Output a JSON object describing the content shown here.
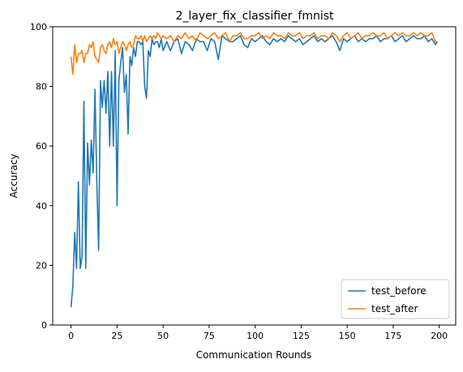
{
  "chart_data": {
    "type": "line",
    "title": "2_layer_fix_classifier_fmnist",
    "xlabel": "Communication Rounds",
    "ylabel": "Accuracy",
    "xlim": [
      -9.95,
      208.95
    ],
    "ylim": [
      0,
      100
    ],
    "xticks": [
      0,
      25,
      50,
      75,
      100,
      125,
      150,
      175,
      200
    ],
    "yticks": [
      0,
      20,
      40,
      60,
      80,
      100
    ],
    "grid": false,
    "legend_position": "lower right",
    "series": [
      {
        "name": "test_before",
        "color": "#1f77b4",
        "x": [
          0,
          1,
          2,
          3,
          4,
          5,
          6,
          7,
          8,
          9,
          10,
          11,
          12,
          13,
          14,
          15,
          16,
          17,
          18,
          19,
          20,
          21,
          22,
          23,
          24,
          25,
          26,
          27,
          28,
          29,
          30,
          31,
          32,
          33,
          34,
          35,
          36,
          37,
          38,
          39,
          40,
          41,
          42,
          43,
          44,
          45,
          46,
          47,
          48,
          49,
          50,
          52,
          54,
          56,
          58,
          60,
          62,
          64,
          66,
          68,
          70,
          72,
          74,
          76,
          78,
          80,
          82,
          84,
          86,
          88,
          90,
          92,
          94,
          96,
          98,
          100,
          102,
          104,
          106,
          108,
          110,
          112,
          114,
          116,
          118,
          120,
          122,
          124,
          126,
          128,
          130,
          132,
          134,
          136,
          138,
          140,
          142,
          144,
          146,
          148,
          150,
          152,
          154,
          156,
          158,
          160,
          162,
          164,
          166,
          168,
          170,
          172,
          174,
          176,
          178,
          180,
          182,
          184,
          186,
          188,
          190,
          192,
          194,
          196,
          198,
          199
        ],
        "values": [
          6,
          13,
          31,
          19,
          48,
          19,
          23,
          75,
          19,
          61,
          47,
          62,
          51,
          79,
          48,
          25,
          82,
          73,
          82,
          71,
          85,
          60,
          85,
          60,
          92,
          40,
          82,
          88,
          93,
          78,
          84,
          64,
          90,
          87,
          93,
          90,
          95,
          95,
          94,
          95,
          80,
          76,
          92,
          90,
          96,
          94,
          95,
          95,
          93,
          96,
          92,
          95,
          92,
          95,
          96,
          91,
          95,
          94,
          92,
          96,
          95,
          95,
          92,
          96,
          95,
          89,
          97,
          96,
          95,
          95,
          96,
          97,
          94,
          93,
          96,
          95,
          96,
          97,
          95,
          94,
          96,
          95,
          96,
          95,
          97,
          96,
          95,
          96,
          94,
          95,
          96,
          97,
          95,
          96,
          95,
          96,
          97,
          95,
          92,
          96,
          95,
          96,
          97,
          95,
          96,
          95,
          96,
          96,
          97,
          95,
          96,
          96,
          97,
          95,
          96,
          97,
          95,
          96,
          97,
          96,
          96,
          97,
          95,
          96,
          94,
          95
        ]
      },
      {
        "name": "test_after",
        "color": "#ff7f0e",
        "x": [
          0,
          1,
          2,
          3,
          4,
          5,
          6,
          7,
          8,
          9,
          10,
          11,
          12,
          13,
          14,
          15,
          16,
          17,
          18,
          19,
          20,
          21,
          22,
          23,
          24,
          25,
          26,
          27,
          28,
          29,
          30,
          31,
          32,
          33,
          34,
          35,
          36,
          37,
          38,
          39,
          40,
          41,
          42,
          43,
          44,
          45,
          46,
          47,
          48,
          49,
          50,
          52,
          54,
          56,
          58,
          60,
          62,
          64,
          66,
          68,
          70,
          72,
          74,
          76,
          78,
          80,
          82,
          84,
          86,
          88,
          90,
          92,
          94,
          96,
          98,
          100,
          102,
          104,
          106,
          108,
          110,
          112,
          114,
          116,
          118,
          120,
          122,
          124,
          126,
          128,
          130,
          132,
          134,
          136,
          138,
          140,
          142,
          144,
          146,
          148,
          150,
          152,
          154,
          156,
          158,
          160,
          162,
          164,
          166,
          168,
          170,
          172,
          174,
          176,
          178,
          180,
          182,
          184,
          186,
          188,
          190,
          192,
          194,
          196,
          198,
          199
        ],
        "values": [
          90,
          84,
          94,
          88,
          91,
          91,
          92,
          88,
          91,
          91,
          94,
          93,
          95,
          90,
          89,
          88,
          93,
          94,
          92,
          91,
          94,
          95,
          93,
          96,
          94,
          95,
          91,
          93,
          95,
          94,
          92,
          94,
          95,
          93,
          94,
          97,
          96,
          96,
          97,
          95,
          97,
          95,
          96,
          97,
          96,
          97,
          96,
          98,
          97,
          96,
          97,
          96,
          97,
          95,
          97,
          96,
          98,
          96,
          97,
          95,
          98,
          97,
          96,
          97,
          98,
          96,
          97,
          98,
          95,
          97,
          97,
          98,
          96,
          96,
          97,
          97,
          98,
          96,
          97,
          96,
          98,
          97,
          97,
          96,
          98,
          97,
          97,
          98,
          96,
          97,
          97,
          98,
          96,
          97,
          97,
          96,
          98,
          97,
          95,
          97,
          98,
          96,
          97,
          98,
          96,
          97,
          97,
          98,
          97,
          97,
          98,
          96,
          97,
          98,
          97,
          98,
          97,
          97,
          98,
          97,
          98,
          97,
          97,
          98,
          95,
          95
        ]
      }
    ]
  }
}
